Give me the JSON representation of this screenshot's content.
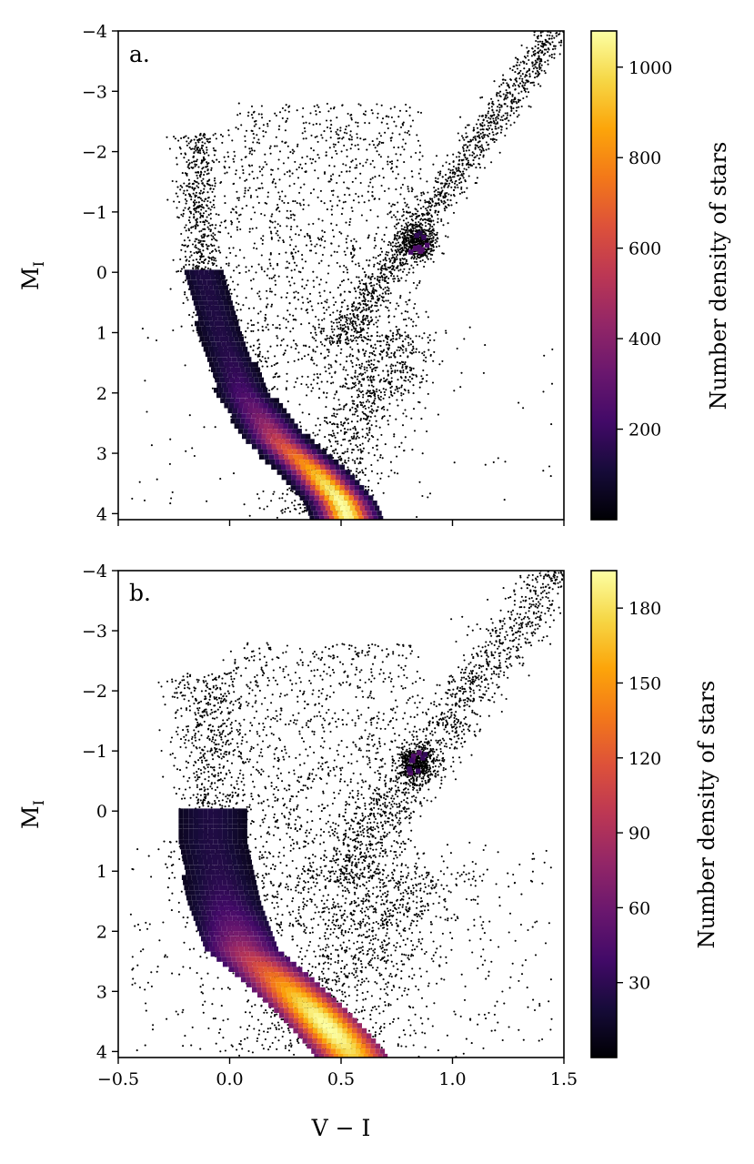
{
  "chart_data": [
    {
      "type": "heatmap",
      "panel_label": "a.",
      "xlabel": "",
      "ylabel": "M_I",
      "ylabel_main": "M",
      "ylabel_sub": "I",
      "xlim": [
        -0.5,
        1.5
      ],
      "ylim": [
        4.1,
        -4.0
      ],
      "y_inverted": true,
      "xticks": [
        -0.5,
        0.0,
        0.5,
        1.0,
        1.5
      ],
      "xtick_labels_shown": false,
      "yticks": [
        -4,
        -3,
        -2,
        -1,
        0,
        1,
        2,
        3,
        4
      ],
      "ytick_labels": [
        "−4",
        "−3",
        "−2",
        "−1",
        "0",
        "1",
        "2",
        "3",
        "4"
      ],
      "colorbar": {
        "label": "Number density of stars",
        "colormap": "inferno",
        "range": [
          0,
          1080
        ],
        "ticks": [
          200,
          400,
          600,
          800,
          1000
        ],
        "tick_labels": [
          "200",
          "400",
          "600",
          "800",
          "1000"
        ]
      },
      "main_sequence_ridge": [
        {
          "v_i": -0.12,
          "mi": 0.0
        },
        {
          "v_i": -0.04,
          "mi": 1.0
        },
        {
          "v_i": 0.06,
          "mi": 2.0
        },
        {
          "v_i": 0.22,
          "mi": 2.8
        },
        {
          "v_i": 0.38,
          "mi": 3.3
        },
        {
          "v_i": 0.5,
          "mi": 3.8
        },
        {
          "v_i": 0.53,
          "mi": 4.05
        }
      ],
      "peak_density": {
        "v_i": 0.52,
        "mi": 3.9,
        "value": 1000
      },
      "red_clump": {
        "v_i": 0.85,
        "mi": -0.5
      }
    },
    {
      "type": "heatmap",
      "panel_label": "b.",
      "xlabel": "V − I",
      "ylabel": "M_I",
      "ylabel_main": "M",
      "ylabel_sub": "I",
      "xlim": [
        -0.5,
        1.5
      ],
      "ylim": [
        4.1,
        -4.0
      ],
      "y_inverted": true,
      "xticks": [
        -0.5,
        0.0,
        0.5,
        1.0,
        1.5
      ],
      "xtick_labels": [
        "−0.5",
        "0.0",
        "0.5",
        "1.0",
        "1.5"
      ],
      "yticks": [
        -4,
        -3,
        -2,
        -1,
        0,
        1,
        2,
        3,
        4
      ],
      "ytick_labels": [
        "−4",
        "−3",
        "−2",
        "−1",
        "0",
        "1",
        "2",
        "3",
        "4"
      ],
      "colorbar": {
        "label": "Number density of stars",
        "colormap": "inferno",
        "range": [
          0,
          195
        ],
        "ticks": [
          30,
          60,
          90,
          120,
          150,
          180
        ],
        "tick_labels": [
          "30",
          "60",
          "90",
          "120",
          "150",
          "180"
        ]
      },
      "main_sequence_ridge": [
        {
          "v_i": -0.08,
          "mi": 0.5
        },
        {
          "v_i": -0.02,
          "mi": 1.5
        },
        {
          "v_i": 0.06,
          "mi": 2.3
        },
        {
          "v_i": 0.22,
          "mi": 2.8
        },
        {
          "v_i": 0.38,
          "mi": 3.35
        },
        {
          "v_i": 0.48,
          "mi": 3.75
        },
        {
          "v_i": 0.55,
          "mi": 4.05
        }
      ],
      "peak_density": {
        "v_i": 0.45,
        "mi": 3.6,
        "value": 185
      },
      "red_clump": {
        "v_i": 0.84,
        "mi": -0.8
      }
    }
  ]
}
